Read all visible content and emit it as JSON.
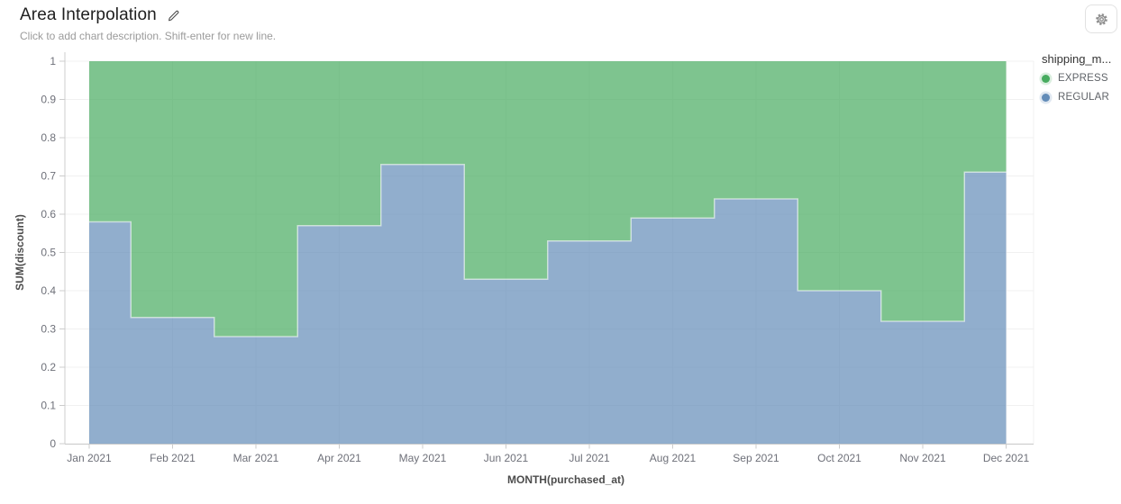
{
  "header": {
    "title": "Area Interpolation",
    "subtitle": "Click to add chart description. Shift-enter for new line."
  },
  "toolbar": {
    "settings_icon": "gear-icon",
    "edit_icon": "pencil-icon"
  },
  "chart_data": {
    "type": "area",
    "variant": "stacked-step-mid",
    "stack_total": 1,
    "x": [
      "Jan 2021",
      "Feb 2021",
      "Mar 2021",
      "Apr 2021",
      "May 2021",
      "Jun 2021",
      "Jul 2021",
      "Aug 2021",
      "Sep 2021",
      "Oct 2021",
      "Nov 2021",
      "Dec 2021"
    ],
    "series": [
      {
        "name": "EXPRESS",
        "color": "#47ab5f",
        "values": [
          0.42,
          0.67,
          0.72,
          0.43,
          0.27,
          0.57,
          0.47,
          0.41,
          0.36,
          0.6,
          0.68,
          0.29
        ]
      },
      {
        "name": "REGULAR",
        "color": "#638cb8",
        "values": [
          0.58,
          0.33,
          0.28,
          0.57,
          0.73,
          0.43,
          0.53,
          0.59,
          0.64,
          0.4,
          0.32,
          0.71
        ]
      }
    ],
    "fill_opacity": 0.7,
    "xlabel": "MONTH(purchased_at)",
    "ylabel": "SUM(discount)",
    "ylim": [
      0,
      1
    ],
    "ytick_labels": [
      "0",
      "0.1",
      "0.2",
      "0.3",
      "0.4",
      "0.5",
      "0.6",
      "0.7",
      "0.8",
      "0.9",
      "1"
    ],
    "grid": true,
    "legend": {
      "title": "shipping_m...",
      "position": "right",
      "items": [
        {
          "label": "EXPRESS",
          "color": "#47ab5f"
        },
        {
          "label": "REGULAR",
          "color": "#638cb8"
        }
      ]
    }
  }
}
